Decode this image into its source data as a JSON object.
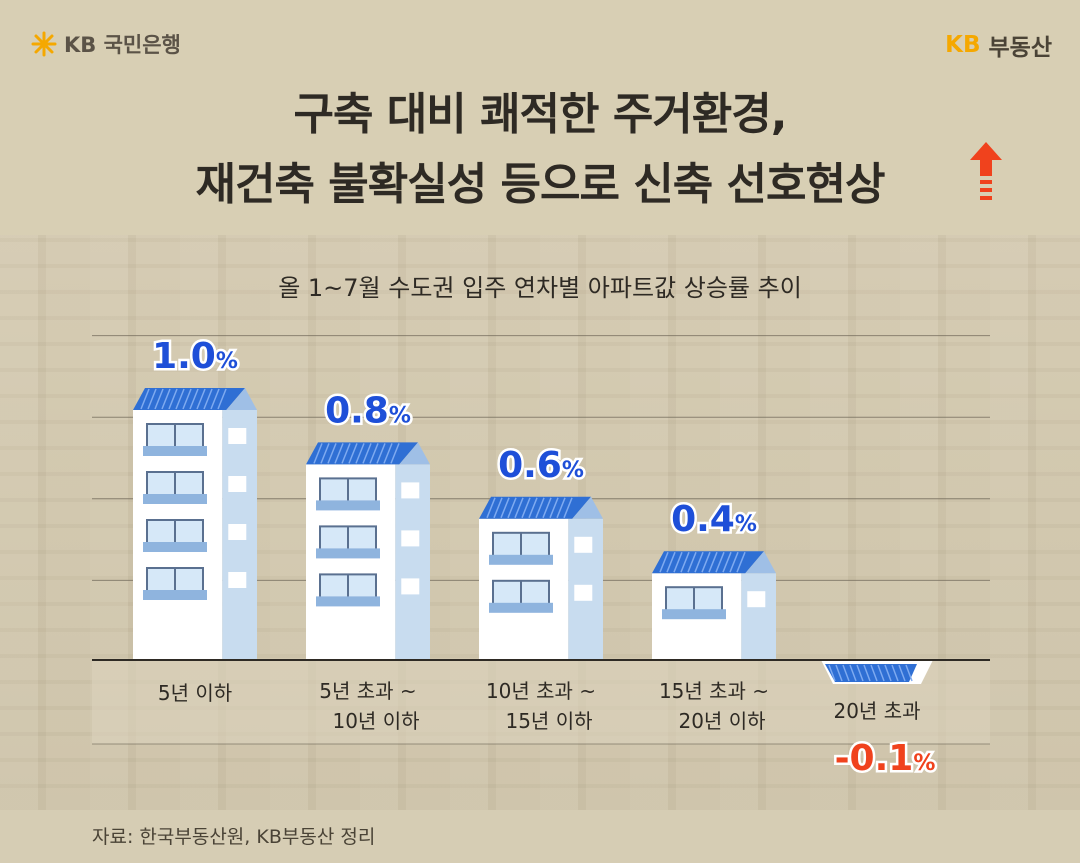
{
  "brand": {
    "left_text": "KB 국민은행",
    "right_kb": "KB",
    "right_text": "부동산"
  },
  "title": {
    "line1": "구축 대비 쾌적한 주거환경,",
    "line2": "재건축 불확실성 등으로 신축 선호현상"
  },
  "source": "자료: 한국부동산원, KB부동산 정리",
  "colors": {
    "background": "#d8cfb4",
    "roof": "#2f6fd4",
    "positive_label": "#1e4fd8",
    "negative_label": "#f0421d",
    "arrow": "#f0421d"
  },
  "chart_data": {
    "type": "bar",
    "title": "올 1~7월 수도권 입주 연차별 아파트값 상승률 추이",
    "unit": "%",
    "categories": [
      "5년 이하",
      "5년 초과 ~\n10년 이하",
      "10년 초과 ~\n15년 이하",
      "15년 초과 ~\n20년 이하",
      "20년 초과"
    ],
    "values": [
      1.0,
      0.8,
      0.6,
      0.4,
      -0.1
    ],
    "value_labels": [
      "1.0",
      "0.8",
      "0.6",
      "0.4",
      "-0.1"
    ],
    "ylim": [
      -0.1,
      1.2
    ],
    "grid": true
  }
}
